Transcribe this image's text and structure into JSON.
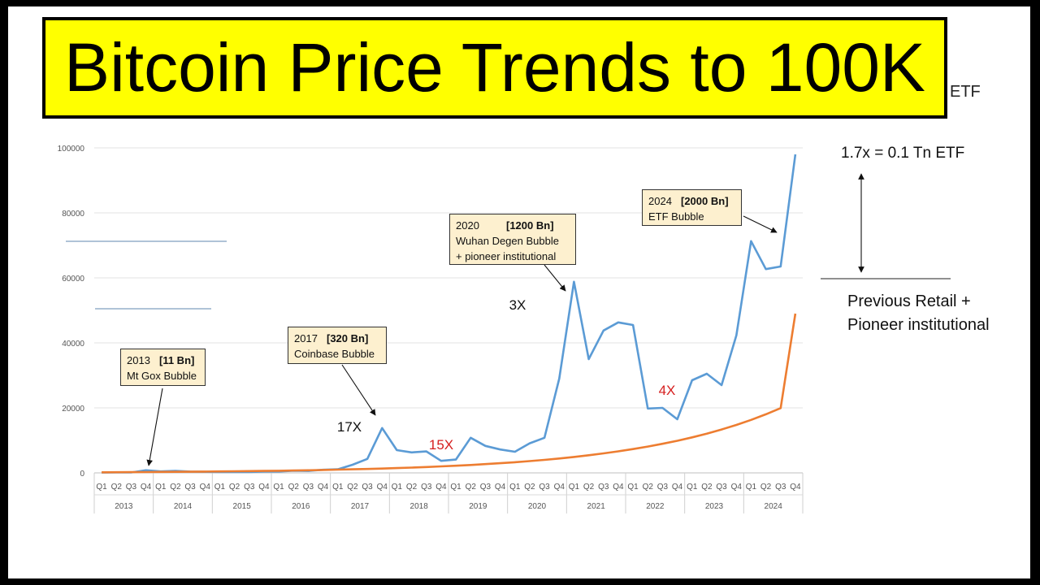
{
  "title": "Bitcoin Price Trends to 100K",
  "cut_off_text": "ETF",
  "side_notes": {
    "ratio": "1.7x = 0.1 Tn ETF",
    "previous_line1": "Previous Retail +",
    "previous_line2": "Pioneer institutional"
  },
  "annotations": [
    {
      "year": "2013",
      "cap": "[11 Bn]",
      "label": "Mt Gox Bubble"
    },
    {
      "year": "2017",
      "cap": "[320 Bn]",
      "label": "Coinbase Bubble"
    },
    {
      "year": "2020",
      "cap": "[1200 Bn]",
      "label": "Wuhan Degen Bubble",
      "label2": "+ pioneer institutional"
    },
    {
      "year": "2024",
      "cap": "[2000 Bn]",
      "label": "ETF Bubble"
    }
  ],
  "multipliers": [
    {
      "text": "17X",
      "color": "#111111"
    },
    {
      "text": "15X",
      "color": "#d62020"
    },
    {
      "text": "3X",
      "color": "#111111"
    },
    {
      "text": "4X",
      "color": "#d62020"
    }
  ],
  "chart_data": {
    "type": "line",
    "title": "",
    "xlabel": "",
    "ylabel": "",
    "ylim": [
      0,
      100000
    ],
    "yticks": [
      "0",
      "20000",
      "40000",
      "60000",
      "80000",
      "100000"
    ],
    "quarters": [
      "Q1",
      "Q2",
      "Q3",
      "Q4"
    ],
    "years": [
      "2013",
      "2014",
      "2015",
      "2016",
      "2017",
      "2018",
      "2019",
      "2020",
      "2021",
      "2022",
      "2023",
      "2024"
    ],
    "grid": true,
    "series": [
      {
        "name": "",
        "color": "#5b9bd5",
        "values": [
          100,
          120,
          130,
          800,
          450,
          600,
          400,
          320,
          250,
          240,
          240,
          430,
          420,
          680,
          610,
          960,
          1100,
          2500,
          4300,
          13800,
          7000,
          6300,
          6600,
          3700,
          4100,
          10800,
          8300,
          7200,
          6500,
          9100,
          10800,
          29000,
          58800,
          35000,
          43800,
          46300,
          45500,
          19800,
          20000,
          16500,
          28500,
          30500,
          27000,
          42300,
          71300,
          62700,
          63500,
          98000
        ]
      },
      {
        "name": "",
        "color": "#ed7d31",
        "values": [
          180,
          200,
          230,
          260,
          290,
          320,
          360,
          400,
          440,
          490,
          540,
          600,
          660,
          730,
          810,
          890,
          990,
          1090,
          1210,
          1330,
          1470,
          1630,
          1800,
          1990,
          2200,
          2430,
          2690,
          2970,
          3280,
          3630,
          4010,
          4430,
          4900,
          5420,
          5990,
          6620,
          7320,
          8090,
          8940,
          9880,
          10920,
          12070,
          13340,
          14750,
          16300,
          18020,
          19920,
          49000
        ]
      }
    ]
  }
}
